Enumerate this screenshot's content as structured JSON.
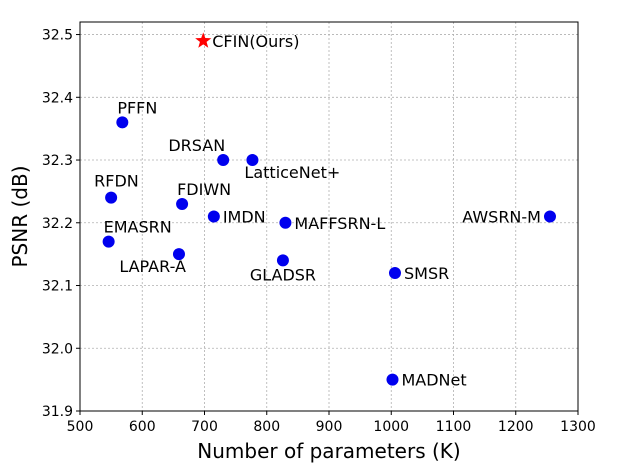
{
  "chart_data": {
    "type": "scatter",
    "title": "",
    "xlabel": "Number of parameters (K)",
    "ylabel": "PSNR (dB)",
    "xlim": [
      500,
      1300
    ],
    "ylim": [
      31.9,
      32.52
    ],
    "xticks": [
      "500",
      "600",
      "700",
      "800",
      "900",
      "1000",
      "1100",
      "1200",
      "1300"
    ],
    "yticks": [
      "31.9",
      "32.0",
      "32.1",
      "32.2",
      "32.3",
      "32.4",
      "32.5"
    ],
    "grid": true,
    "marker_color": "#0000ee",
    "highlight_color": "#ff0000",
    "points": [
      {
        "name": "CFIN(Ours)",
        "x": 698,
        "y": 32.49,
        "marker": "star",
        "label_pos": "right"
      },
      {
        "name": "PFFN",
        "x": 568,
        "y": 32.36,
        "marker": "circle",
        "label_pos": "above-right"
      },
      {
        "name": "DRSAN",
        "x": 730,
        "y": 32.3,
        "marker": "circle",
        "label_pos": "above-left"
      },
      {
        "name": "LatticeNet+",
        "x": 777,
        "y": 32.3,
        "marker": "circle",
        "label_pos": "below-right"
      },
      {
        "name": "RFDN",
        "x": 550,
        "y": 32.24,
        "marker": "circle",
        "label_pos": "above"
      },
      {
        "name": "FDIWN",
        "x": 664,
        "y": 32.23,
        "marker": "circle",
        "label_pos": "above-right"
      },
      {
        "name": "IMDN",
        "x": 715,
        "y": 32.21,
        "marker": "circle",
        "label_pos": "right"
      },
      {
        "name": "MAFFSRN-L",
        "x": 830,
        "y": 32.2,
        "marker": "circle",
        "label_pos": "right"
      },
      {
        "name": "AWSRN-M",
        "x": 1255,
        "y": 32.21,
        "marker": "circle",
        "label_pos": "left"
      },
      {
        "name": "EMASRN",
        "x": 546,
        "y": 32.17,
        "marker": "circle",
        "label_pos": "above-right"
      },
      {
        "name": "LAPAR-A",
        "x": 659,
        "y": 32.15,
        "marker": "circle",
        "label_pos": "below-left"
      },
      {
        "name": "GLADSR",
        "x": 826,
        "y": 32.14,
        "marker": "circle",
        "label_pos": "below"
      },
      {
        "name": "SMSR",
        "x": 1006,
        "y": 32.12,
        "marker": "circle",
        "label_pos": "right"
      },
      {
        "name": "MADNet",
        "x": 1002,
        "y": 31.95,
        "marker": "circle",
        "label_pos": "right"
      }
    ]
  }
}
